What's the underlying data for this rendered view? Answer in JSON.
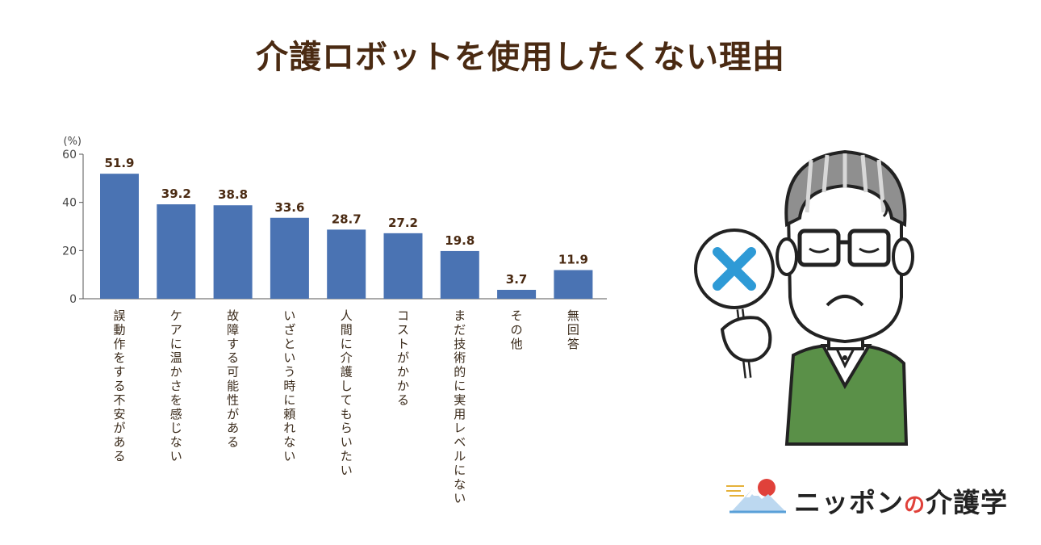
{
  "title": "介護ロボットを使用したくない理由",
  "chart_data": {
    "type": "bar",
    "categories": [
      "誤動作をする不安がある",
      "ケアに温かさを感じない",
      "故障する可能性がある",
      "いざという時に頼れない",
      "人間に介護してもらいたい",
      "コストがかかる",
      "まだ技術的に実用レベルにない",
      "その他",
      "無回答"
    ],
    "values": [
      51.9,
      39.2,
      38.8,
      33.6,
      28.7,
      27.2,
      19.8,
      3.7,
      11.9
    ],
    "value_labels": [
      "51.9",
      "39.2",
      "38.8",
      "33.6",
      "28.7",
      "27.2",
      "19.8",
      "3.7",
      "11.9"
    ],
    "yticks": [
      "0",
      "20",
      "40",
      "60"
    ],
    "yunit": "(%)",
    "ylim": [
      0,
      60
    ],
    "bar_color": "#4a73b3",
    "label_color": "#4a2a12",
    "grid": false
  },
  "logo": {
    "text_a": "ニッポン",
    "text_no": "の",
    "text_b": "介護学"
  },
  "colors": {
    "title": "#4a2a12",
    "sweater": "#5a9048",
    "x_mark": "#2e9ad6"
  }
}
